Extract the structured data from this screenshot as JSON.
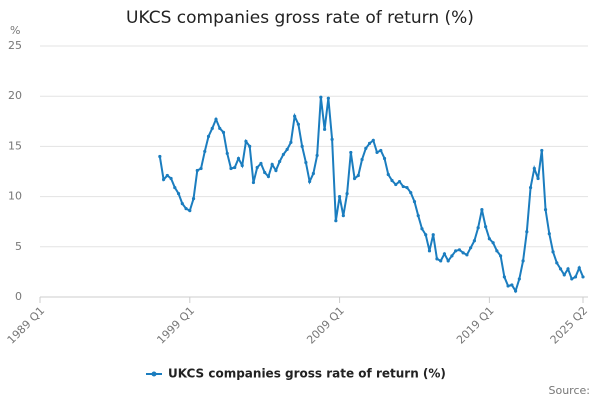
{
  "chart_data": {
    "type": "line",
    "title": "UKCS companies gross rate of return (%)",
    "y_unit": "%",
    "source_label": "Source:",
    "categories": [
      "1989 Q1",
      null,
      null,
      null,
      null,
      null,
      null,
      null,
      null,
      null,
      null,
      null,
      null,
      null,
      null,
      null,
      null,
      null,
      null,
      null,
      null,
      null,
      null,
      null,
      null,
      null,
      null,
      null,
      null,
      null,
      null,
      null,
      null,
      null,
      null,
      null,
      null,
      null,
      null,
      null,
      "1999 Q1",
      null,
      null,
      null,
      null,
      null,
      null,
      null,
      null,
      null,
      null,
      null,
      null,
      null,
      null,
      null,
      null,
      null,
      null,
      null,
      null,
      null,
      null,
      null,
      null,
      null,
      null,
      null,
      null,
      null,
      null,
      null,
      null,
      null,
      null,
      null,
      null,
      null,
      null,
      null,
      "2009 Q1",
      null,
      null,
      null,
      null,
      null,
      null,
      null,
      null,
      null,
      null,
      null,
      null,
      null,
      null,
      null,
      null,
      null,
      null,
      null,
      null,
      null,
      null,
      null,
      null,
      null,
      null,
      null,
      null,
      null,
      null,
      null,
      null,
      null,
      null,
      null,
      null,
      null,
      null,
      null,
      "2019 Q1",
      null,
      null,
      null,
      null,
      null,
      null,
      null,
      null,
      null,
      null,
      null,
      null,
      null,
      null,
      null,
      null,
      null,
      null,
      null,
      null,
      null,
      null,
      null,
      null,
      "2025 Q2"
    ],
    "series": [
      {
        "name": "UKCS companies gross rate of return (%)",
        "color": "#1b7dbf",
        "values": [
          null,
          null,
          null,
          null,
          null,
          null,
          null,
          null,
          null,
          null,
          null,
          null,
          null,
          null,
          null,
          null,
          null,
          null,
          null,
          null,
          null,
          null,
          null,
          null,
          null,
          null,
          null,
          null,
          null,
          null,
          null,
          null,
          14.0,
          11.7,
          12.1,
          11.8,
          10.9,
          10.3,
          9.3,
          8.8,
          8.6,
          9.8,
          12.6,
          12.8,
          14.5,
          16.0,
          16.8,
          17.7,
          16.8,
          16.4,
          14.3,
          12.8,
          12.9,
          13.8,
          13.1,
          15.5,
          15.0,
          11.4,
          12.9,
          13.3,
          12.4,
          12.0,
          13.2,
          12.6,
          13.5,
          14.2,
          14.7,
          15.4,
          18.0,
          17.2,
          15.0,
          13.4,
          11.5,
          12.3,
          14.1,
          19.9,
          16.7,
          19.8,
          15.7,
          7.6,
          10.0,
          8.1,
          10.3,
          14.4,
          11.8,
          12.1,
          13.7,
          14.8,
          15.3,
          15.6,
          14.4,
          14.6,
          13.8,
          12.2,
          11.6,
          11.2,
          11.5,
          11.0,
          10.9,
          10.4,
          9.5,
          8.1,
          6.8,
          6.2,
          4.6,
          6.2,
          3.8,
          3.6,
          4.3,
          3.6,
          4.1,
          4.6,
          4.7,
          4.4,
          4.2,
          4.9,
          5.6,
          6.9,
          8.7,
          7.0,
          5.8,
          5.4,
          4.6,
          4.1,
          2.0,
          1.1,
          1.2,
          0.6,
          1.8,
          3.6,
          6.5,
          10.9,
          12.8,
          11.8,
          14.6,
          8.7,
          6.3,
          4.5,
          3.4,
          2.8,
          2.2,
          2.8,
          1.8,
          2.0,
          2.9,
          2.0
        ]
      }
    ],
    "ylim": [
      0,
      25
    ],
    "yticks": [
      0,
      5,
      10,
      15,
      20,
      25
    ],
    "grid": true
  }
}
